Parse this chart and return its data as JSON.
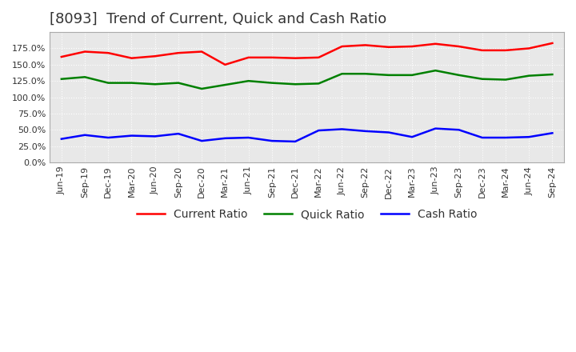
{
  "title": "[8093]  Trend of Current, Quick and Cash Ratio",
  "x_labels": [
    "Jun-19",
    "Sep-19",
    "Dec-19",
    "Mar-20",
    "Jun-20",
    "Sep-20",
    "Dec-20",
    "Mar-21",
    "Jun-21",
    "Sep-21",
    "Dec-21",
    "Mar-22",
    "Jun-22",
    "Sep-22",
    "Dec-22",
    "Mar-23",
    "Jun-23",
    "Sep-23",
    "Dec-23",
    "Mar-24",
    "Jun-24",
    "Sep-24"
  ],
  "current_ratio": [
    1.62,
    1.7,
    1.68,
    1.6,
    1.63,
    1.68,
    1.7,
    1.5,
    1.61,
    1.61,
    1.6,
    1.61,
    1.78,
    1.8,
    1.77,
    1.78,
    1.82,
    1.78,
    1.72,
    1.72,
    1.75,
    1.83
  ],
  "quick_ratio": [
    1.28,
    1.31,
    1.22,
    1.22,
    1.2,
    1.22,
    1.13,
    1.19,
    1.25,
    1.22,
    1.2,
    1.21,
    1.36,
    1.36,
    1.34,
    1.34,
    1.41,
    1.34,
    1.28,
    1.27,
    1.33,
    1.35
  ],
  "cash_ratio": [
    0.36,
    0.42,
    0.38,
    0.41,
    0.4,
    0.44,
    0.33,
    0.37,
    0.38,
    0.33,
    0.32,
    0.49,
    0.51,
    0.48,
    0.46,
    0.39,
    0.52,
    0.5,
    0.38,
    0.38,
    0.39,
    0.45
  ],
  "current_color": "#ff0000",
  "quick_color": "#008000",
  "cash_color": "#0000ff",
  "ylim": [
    0.0,
    2.0
  ],
  "yticks": [
    0.0,
    0.25,
    0.5,
    0.75,
    1.0,
    1.25,
    1.5,
    1.75
  ],
  "ytick_labels": [
    "0.0%",
    "25.0%",
    "50.0%",
    "75.0%",
    "100.0%",
    "125.0%",
    "150.0%",
    "175.0%"
  ],
  "background_color": "#ffffff",
  "plot_bg_color": "#e8e8e8",
  "grid_color": "#ffffff",
  "title_fontsize": 13,
  "legend_fontsize": 10,
  "tick_fontsize": 8
}
